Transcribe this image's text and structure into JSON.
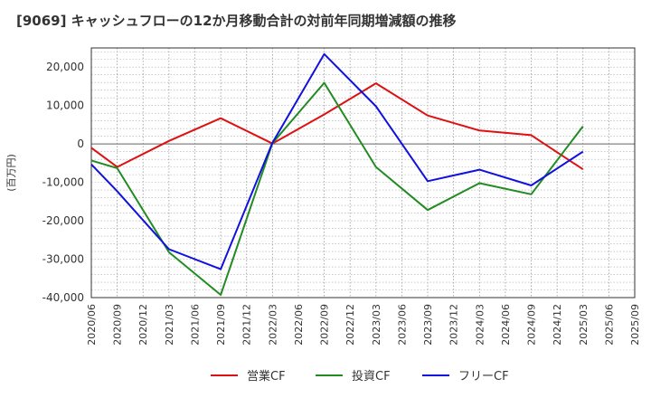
{
  "chart_data": {
    "type": "line",
    "title": "[9069]  キャッシュフローの12か月移動合計の対前年同期増減額の推移",
    "ylabel": "(百万円)",
    "xlabel": "",
    "ylim": [
      -40000,
      25000
    ],
    "yticks": [
      -40000,
      -30000,
      -20000,
      -10000,
      0,
      10000,
      20000
    ],
    "ytick_labels": [
      "-40,000",
      "-30,000",
      "-20,000",
      "-10,000",
      "0",
      "10,000",
      "20,000"
    ],
    "categories": [
      "2020/06",
      "2020/09",
      "2020/12",
      "2021/03",
      "2021/06",
      "2021/09",
      "2021/12",
      "2022/03",
      "2022/06",
      "2022/09",
      "2022/12",
      "2023/03",
      "2023/06",
      "2023/09",
      "2023/12",
      "2024/03",
      "2024/06",
      "2024/09",
      "2024/12",
      "2025/03",
      "2025/06",
      "2025/09"
    ],
    "grid": true,
    "legend_position": "bottom",
    "series": [
      {
        "name": "営業CF",
        "color": "#dd1111",
        "values": [
          -1000,
          -6000,
          null,
          800,
          null,
          6700,
          null,
          100,
          null,
          7700,
          null,
          15800,
          null,
          7400,
          null,
          3500,
          null,
          2300,
          null,
          -6600,
          null,
          null
        ]
      },
      {
        "name": "投資CF",
        "color": "#228b22",
        "values": [
          -4300,
          -6300,
          null,
          -28200,
          null,
          -39300,
          null,
          200,
          null,
          15900,
          null,
          -6000,
          null,
          -17200,
          null,
          -10200,
          null,
          -13100,
          null,
          4600,
          null,
          null
        ]
      },
      {
        "name": "フリーCF",
        "color": "#1111dd",
        "values": [
          -5300,
          -12300,
          null,
          -27400,
          null,
          -32600,
          null,
          300,
          null,
          23400,
          null,
          9800,
          null,
          -9700,
          null,
          -6700,
          null,
          -10800,
          null,
          -2000,
          null,
          null
        ]
      }
    ]
  }
}
